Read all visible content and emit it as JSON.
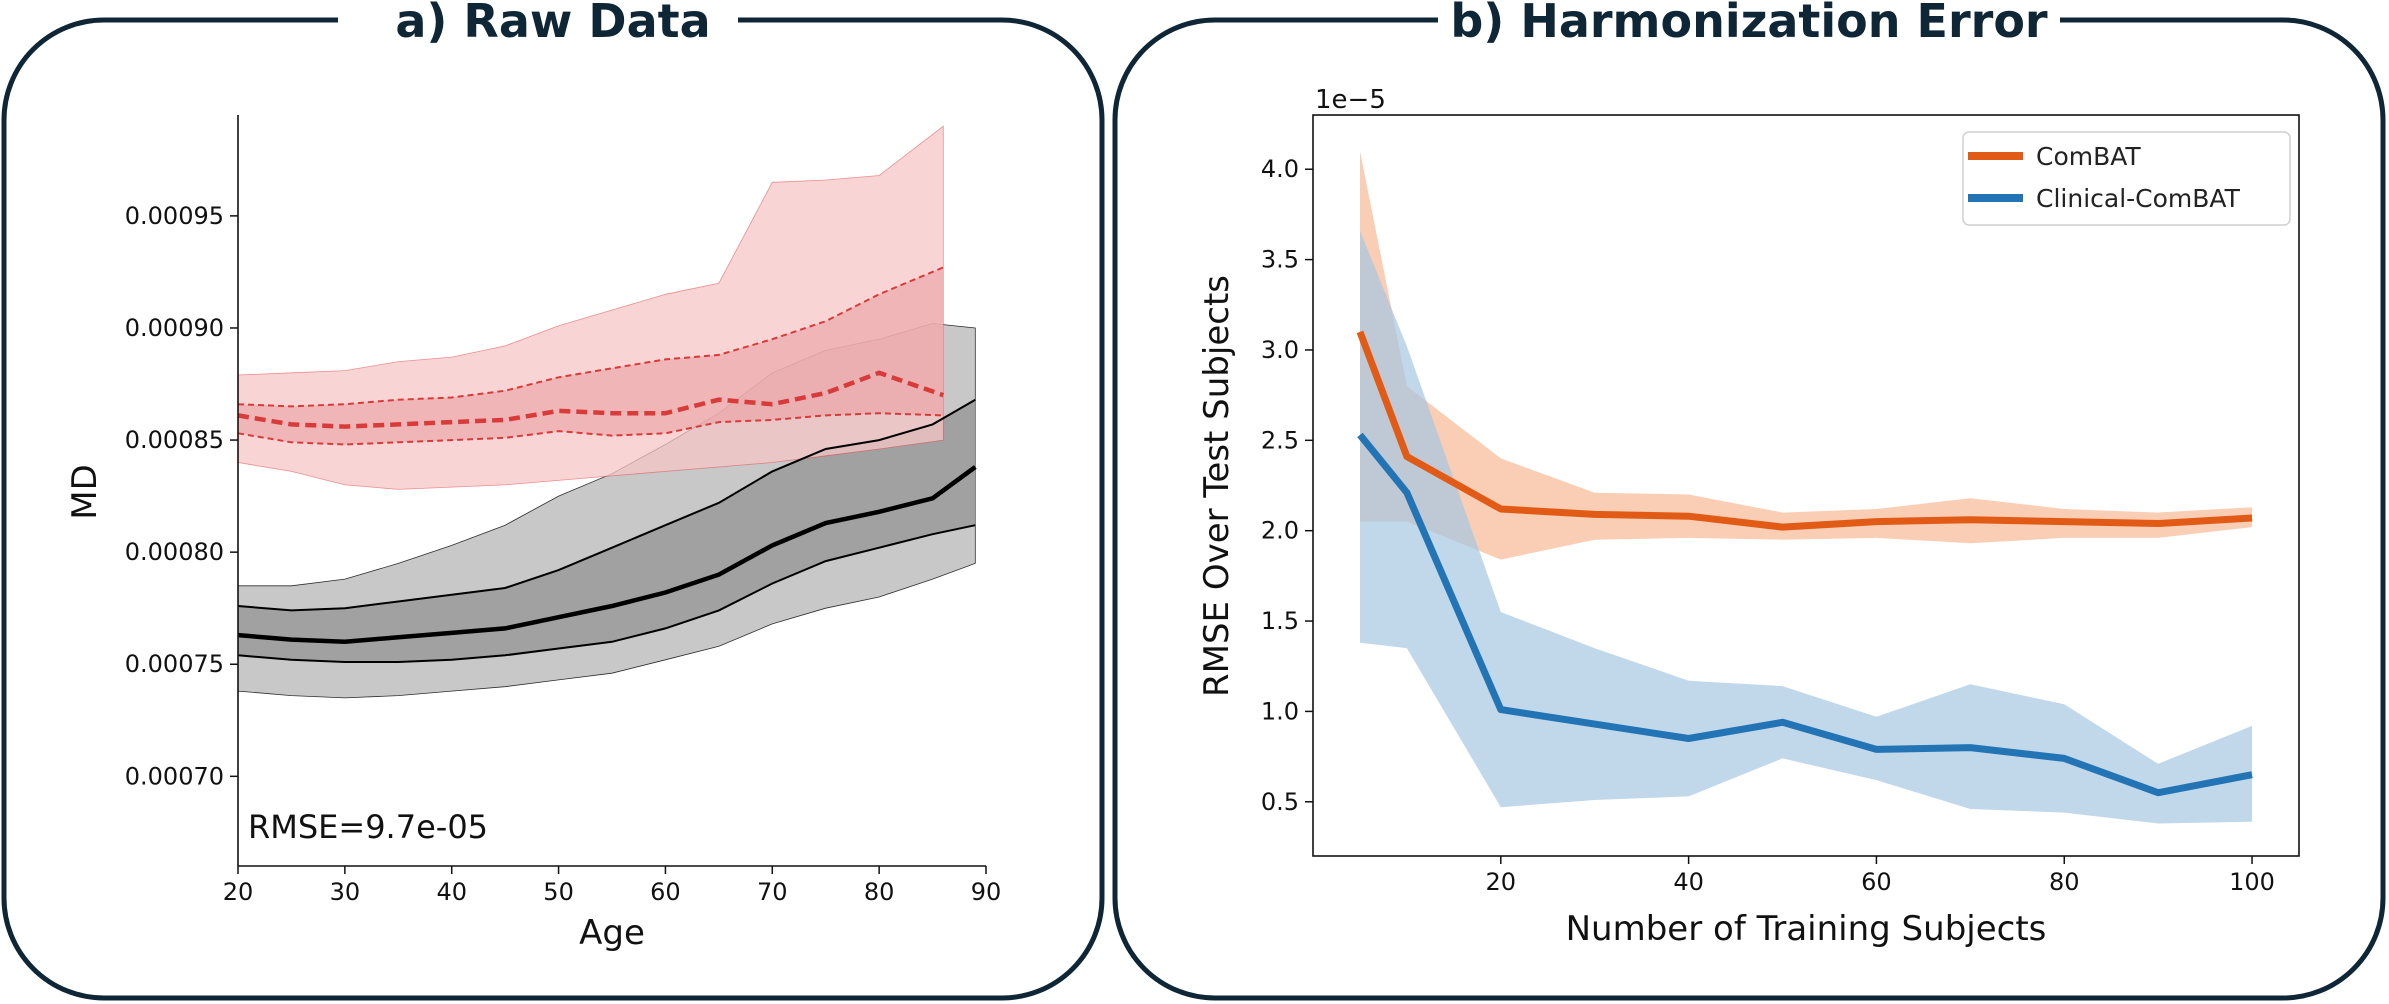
{
  "chart_data": [
    {
      "type": "line",
      "panel_title": "a) Raw Data",
      "xlabel": "Age",
      "ylabel": "MD",
      "xlim": [
        20,
        90
      ],
      "ylim": [
        0.00066,
        0.000995
      ],
      "xticks": [
        20,
        30,
        40,
        50,
        60,
        70,
        80,
        90
      ],
      "yticks": [
        0.0007,
        0.00075,
        0.0008,
        0.00085,
        0.0009,
        0.00095
      ],
      "ytick_labels": [
        "0.00070",
        "0.00075",
        "0.00080",
        "0.00085",
        "0.00090",
        "0.00095"
      ],
      "annotation": "RMSE=9.7e-05",
      "colors": {
        "red_line": "#d93a3a",
        "red_outer": "#f5c6c6",
        "red_inner": "#eba0a3",
        "gray_line": "#000000",
        "gray_outer": "#c8c8c8",
        "gray_inner": "#9a9a9a",
        "frame": "#0f2636"
      },
      "series": [
        {
          "name": "red",
          "x": [
            20,
            25,
            30,
            35,
            40,
            45,
            50,
            55,
            60,
            65,
            70,
            75,
            80,
            86
          ],
          "median": [
            0.000861,
            0.000857,
            0.000856,
            0.000857,
            0.000858,
            0.000859,
            0.000863,
            0.000862,
            0.000862,
            0.000868,
            0.000866,
            0.000871,
            0.00088,
            0.00087
          ],
          "inner_low": [
            0.000853,
            0.000849,
            0.000848,
            0.000849,
            0.00085,
            0.000851,
            0.000854,
            0.000852,
            0.000853,
            0.000858,
            0.000859,
            0.000861,
            0.000862,
            0.000861
          ],
          "inner_high": [
            0.000866,
            0.000865,
            0.000866,
            0.000868,
            0.000869,
            0.000872,
            0.000878,
            0.000882,
            0.000886,
            0.000888,
            0.000895,
            0.000903,
            0.000915,
            0.000927
          ],
          "outer_low": [
            0.00084,
            0.000836,
            0.00083,
            0.000828,
            0.000829,
            0.00083,
            0.000832,
            0.000834,
            0.000836,
            0.000838,
            0.00084,
            0.000843,
            0.000846,
            0.00085
          ],
          "outer_high": [
            0.000879,
            0.00088,
            0.000881,
            0.000885,
            0.000887,
            0.000892,
            0.000901,
            0.000908,
            0.000915,
            0.00092,
            0.000965,
            0.000966,
            0.000968,
            0.00099
          ]
        },
        {
          "name": "black",
          "x": [
            20,
            25,
            30,
            35,
            40,
            45,
            50,
            55,
            60,
            65,
            70,
            75,
            80,
            85,
            89
          ],
          "median": [
            0.000763,
            0.000761,
            0.00076,
            0.000762,
            0.000764,
            0.000766,
            0.000771,
            0.000776,
            0.000782,
            0.00079,
            0.000803,
            0.000813,
            0.000818,
            0.000824,
            0.000838
          ],
          "inner_low": [
            0.000754,
            0.000752,
            0.000751,
            0.000751,
            0.000752,
            0.000754,
            0.000757,
            0.00076,
            0.000766,
            0.000774,
            0.000786,
            0.000796,
            0.000802,
            0.000808,
            0.000812
          ],
          "inner_high": [
            0.000776,
            0.000774,
            0.000775,
            0.000778,
            0.000781,
            0.000784,
            0.000792,
            0.000802,
            0.000812,
            0.000822,
            0.000836,
            0.000846,
            0.00085,
            0.000857,
            0.000868
          ],
          "outer_low": [
            0.000738,
            0.000736,
            0.000735,
            0.000736,
            0.000738,
            0.00074,
            0.000743,
            0.000746,
            0.000752,
            0.000758,
            0.000768,
            0.000775,
            0.00078,
            0.000788,
            0.000795
          ],
          "outer_high": [
            0.000785,
            0.000785,
            0.000788,
            0.000795,
            0.000803,
            0.000812,
            0.000825,
            0.000835,
            0.000848,
            0.000862,
            0.00088,
            0.00089,
            0.000895,
            0.000902,
            0.0009
          ]
        }
      ]
    },
    {
      "type": "line",
      "panel_title": "b) Harmonization Error",
      "xlabel": "Number of Training Subjects",
      "ylabel": "RMSE Over Test Subjects",
      "exponent_label": "1e−5",
      "xlim": [
        0,
        105
      ],
      "ylim": [
        0.2,
        4.3
      ],
      "xticks": [
        20,
        40,
        60,
        80,
        100
      ],
      "yticks": [
        0.5,
        1.0,
        1.5,
        2.0,
        2.5,
        3.0,
        3.5,
        4.0
      ],
      "ytick_labels": [
        "0.5",
        "1.0",
        "1.5",
        "2.0",
        "2.5",
        "3.0",
        "3.5",
        "4.0"
      ],
      "legend_position": "upper right",
      "series": [
        {
          "name": "ComBAT",
          "color": "#e15b16",
          "band_color": "#f6b995",
          "x": [
            5,
            10,
            20,
            30,
            40,
            50,
            60,
            70,
            80,
            90,
            100
          ],
          "values": [
            3.1,
            2.41,
            2.12,
            2.09,
            2.08,
            2.02,
            2.05,
            2.06,
            2.05,
            2.04,
            2.07
          ],
          "lower": [
            2.05,
            2.05,
            1.84,
            1.95,
            1.96,
            1.95,
            1.96,
            1.93,
            1.96,
            1.96,
            2.02
          ],
          "upper": [
            4.1,
            2.8,
            2.4,
            2.21,
            2.2,
            2.1,
            2.12,
            2.18,
            2.12,
            2.1,
            2.13
          ]
        },
        {
          "name": "Clinical-ComBAT",
          "color": "#2374b4",
          "band_color": "#a6c8e3",
          "x": [
            5,
            10,
            20,
            30,
            40,
            50,
            60,
            70,
            80,
            90,
            100
          ],
          "values": [
            2.53,
            2.21,
            1.01,
            0.93,
            0.85,
            0.94,
            0.79,
            0.8,
            0.74,
            0.55,
            0.65
          ],
          "lower": [
            1.38,
            1.35,
            0.47,
            0.51,
            0.53,
            0.74,
            0.62,
            0.46,
            0.44,
            0.38,
            0.39
          ],
          "upper": [
            3.66,
            3.02,
            1.55,
            1.35,
            1.17,
            1.14,
            0.97,
            1.15,
            1.04,
            0.71,
            0.92
          ]
        }
      ]
    }
  ]
}
